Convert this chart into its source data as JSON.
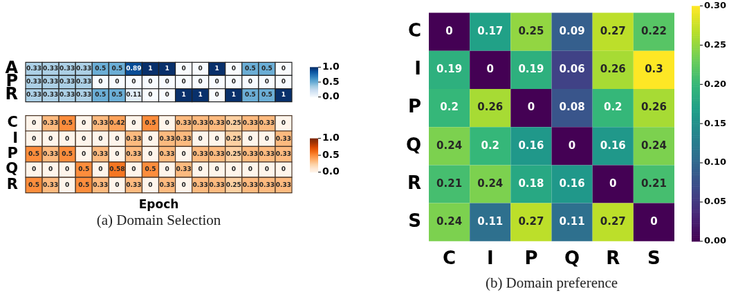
{
  "chart_data": [
    {
      "type": "heatmap",
      "categories": [
        null,
        null,
        null,
        null,
        null,
        null,
        null,
        null,
        null,
        null,
        null,
        null,
        null,
        null,
        null,
        null
      ],
      "y_categories": [
        "A",
        "P",
        "R"
      ],
      "cells": [
        [
          0.33,
          0.33,
          0.33,
          0.33,
          0.5,
          0.5,
          0.89,
          1,
          1,
          0,
          0,
          1,
          0,
          0.5,
          0.5,
          0
        ],
        [
          0.33,
          0.33,
          0.33,
          0.33,
          0,
          0,
          0,
          0,
          0,
          0,
          0,
          0,
          0,
          0,
          0,
          0
        ],
        [
          0.33,
          0.33,
          0.33,
          0.33,
          0.5,
          0.5,
          0.11,
          0,
          0,
          1,
          1,
          0,
          1,
          0.5,
          0.5,
          1
        ]
      ],
      "clim": [
        0,
        1
      ],
      "cticks": [
        {
          "value": 0,
          "label": "0.0"
        },
        {
          "value": 0.5,
          "label": "0.5"
        },
        {
          "value": 1,
          "label": "1.0"
        }
      ],
      "data_labels": true,
      "tick_labels": "y"
    },
    {
      "type": "heatmap",
      "categories": [
        null,
        null,
        null,
        null,
        null,
        null,
        null,
        null,
        null,
        null,
        null,
        null,
        null,
        null,
        null,
        null
      ],
      "y_categories": [
        "C",
        "I",
        "P",
        "Q",
        "R"
      ],
      "xlabel": "Epoch",
      "cells": [
        [
          0,
          0.33,
          0.5,
          0,
          0.33,
          0.42,
          0,
          0.5,
          0,
          0.33,
          0.33,
          0.33,
          0.25,
          0.33,
          0.33,
          0
        ],
        [
          0,
          0,
          0,
          0,
          0,
          0,
          0.33,
          0,
          0.33,
          0.33,
          0,
          0,
          0.25,
          0,
          0,
          0.33
        ],
        [
          0.5,
          0.33,
          0.5,
          0,
          0.33,
          0,
          0.33,
          0,
          0.33,
          0,
          0.33,
          0.33,
          0.25,
          0.33,
          0.33,
          0.33
        ],
        [
          0,
          0,
          0,
          0.5,
          0,
          0.58,
          0,
          0.5,
          0,
          0.33,
          0,
          0,
          0,
          0,
          0,
          0
        ],
        [
          0.5,
          0.33,
          0,
          0.5,
          0.33,
          0,
          0.33,
          0,
          0.33,
          0,
          0.33,
          0.33,
          0.25,
          0.33,
          0.33,
          0.33
        ]
      ],
      "clim": [
        0,
        1
      ],
      "cticks": [
        {
          "value": 0,
          "label": "0.0"
        },
        {
          "value": 0.5,
          "label": "0.5"
        },
        {
          "value": 1,
          "label": "1.0"
        }
      ],
      "data_labels": true,
      "tick_labels": "y",
      "annotations": [
        "(a) Domain Selection"
      ]
    },
    {
      "type": "heatmap",
      "categories": [
        "C",
        "I",
        "P",
        "Q",
        "R",
        "S"
      ],
      "y_categories": [
        "C",
        "I",
        "P",
        "Q",
        "R",
        "S"
      ],
      "cells": [
        [
          0,
          0.17,
          0.25,
          0.09,
          0.27,
          0.22
        ],
        [
          0.19,
          0,
          0.19,
          0.06,
          0.26,
          0.3
        ],
        [
          0.2,
          0.26,
          0,
          0.08,
          0.2,
          0.26
        ],
        [
          0.24,
          0.2,
          0.16,
          0,
          0.16,
          0.24
        ],
        [
          0.21,
          0.24,
          0.18,
          0.16,
          0,
          0.21
        ],
        [
          0.24,
          0.11,
          0.27,
          0.11,
          0.27,
          0
        ]
      ],
      "clim": [
        0,
        0.3
      ],
      "cticks": [
        {
          "value": 0,
          "label": "0.00"
        },
        {
          "value": 0.05,
          "label": "0.05"
        },
        {
          "value": 0.1,
          "label": "0.10"
        },
        {
          "value": 0.15,
          "label": "0.15"
        },
        {
          "value": 0.2,
          "label": "0.20"
        },
        {
          "value": 0.25,
          "label": "0.25"
        },
        {
          "value": 0.3,
          "label": "0.30"
        }
      ],
      "data_labels": true,
      "annotations": [
        "(b) Domain preference"
      ]
    }
  ]
}
